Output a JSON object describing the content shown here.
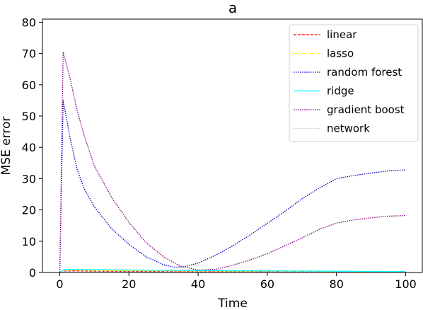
{
  "chart_data": {
    "type": "line",
    "title": "a",
    "xlabel": "Time",
    "ylabel": "MSE error",
    "xlim": [
      -5,
      105
    ],
    "ylim": [
      0,
      81
    ],
    "xticks": [
      0,
      20,
      40,
      60,
      80,
      100
    ],
    "yticks": [
      0,
      10,
      20,
      30,
      40,
      50,
      60,
      70,
      80
    ],
    "grid": false,
    "legend_position": "top-right",
    "series": [
      {
        "name": "linear",
        "color": "#ff0000",
        "dash": "dashed",
        "x": [
          0,
          1,
          2,
          5,
          10,
          20,
          40,
          60,
          80,
          100
        ],
        "y": [
          0,
          0.4,
          0.5,
          0.5,
          0.4,
          0.35,
          0.25,
          0.2,
          0.15,
          0.1
        ]
      },
      {
        "name": "lasso",
        "color": "#ffff00",
        "dash": "dashdot",
        "x": [
          0,
          1,
          2,
          5,
          10,
          20,
          40,
          60,
          80,
          100
        ],
        "y": [
          0,
          0.6,
          0.7,
          0.8,
          0.7,
          0.6,
          0.5,
          0.4,
          0.3,
          0.3
        ]
      },
      {
        "name": "random forest",
        "color": "#0000cd",
        "dash": "dotted",
        "x": [
          0,
          1,
          3,
          5,
          7,
          10,
          15,
          20,
          25,
          30,
          33,
          36,
          40,
          45,
          50,
          55,
          60,
          65,
          70,
          75,
          80,
          85,
          90,
          95,
          100
        ],
        "y": [
          0,
          55,
          43,
          33,
          27,
          21,
          14,
          9,
          5,
          2.5,
          1.7,
          1.8,
          3,
          5.5,
          8.5,
          12,
          15.7,
          19.5,
          23.5,
          27,
          30,
          31,
          31.8,
          32.5,
          32.8
        ]
      },
      {
        "name": "ridge",
        "color": "#00ffff",
        "dash": "solid",
        "x": [
          0,
          1,
          2,
          5,
          10,
          20,
          40,
          60,
          80,
          100
        ],
        "y": [
          0,
          0.8,
          1.0,
          1.0,
          0.9,
          0.8,
          0.6,
          0.5,
          0.4,
          0.3
        ]
      },
      {
        "name": "gradient boost",
        "color": "#800080",
        "dash": "dotted",
        "x": [
          0,
          1,
          3,
          5,
          7,
          10,
          15,
          20,
          25,
          30,
          35,
          40,
          45,
          50,
          55,
          60,
          65,
          70,
          75,
          80,
          85,
          90,
          95,
          100
        ],
        "y": [
          0,
          70.5,
          62,
          52,
          44,
          34,
          24,
          16,
          9.5,
          5,
          2,
          0.8,
          1,
          2.3,
          4,
          6,
          8.5,
          11,
          13.8,
          15.8,
          16.8,
          17.5,
          18,
          18.2
        ]
      },
      {
        "name": "network",
        "color": "#d8bfd8",
        "dash": "dotted",
        "x": [
          0,
          1,
          2,
          5,
          10,
          20,
          40,
          60,
          80,
          100
        ],
        "y": [
          0,
          0.3,
          0.3,
          0.3,
          0.25,
          0.2,
          0.15,
          0.1,
          0.1,
          0.1
        ]
      }
    ]
  }
}
